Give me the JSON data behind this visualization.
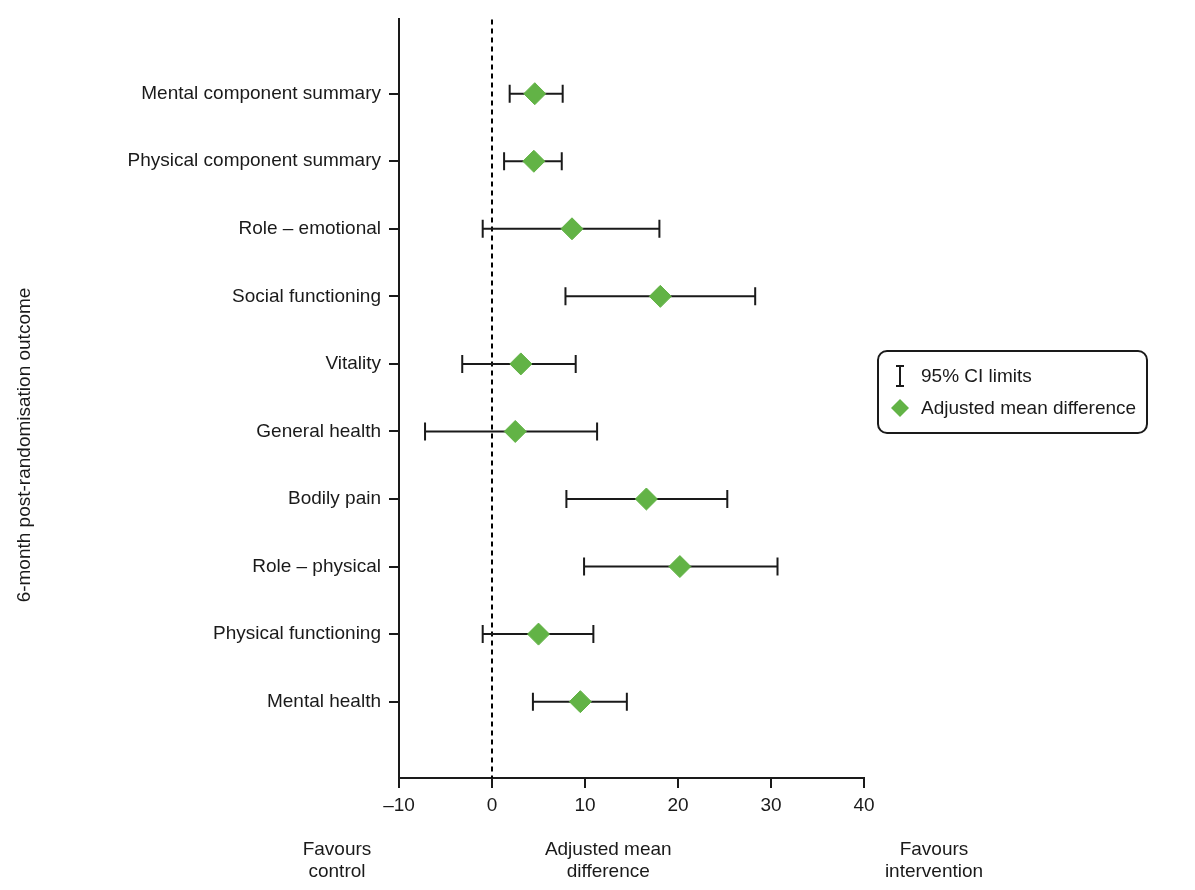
{
  "chart_data": {
    "type": "scatter",
    "orientation": "horizontal",
    "ylabel": "6-month post-randomisation outcome",
    "xlabel": "Adjusted mean difference",
    "categories": [
      "Mental component summary",
      "Physical component summary",
      "Role – emotional",
      "Social functioning",
      "Vitality",
      "General health",
      "Bodily pain",
      "Role – physical",
      "Physical functioning",
      "Mental health"
    ],
    "series": [
      {
        "name": "Adjusted mean difference",
        "color": "#62b346",
        "values": [
          4.6,
          4.5,
          8.6,
          18.1,
          3.1,
          2.5,
          16.6,
          20.2,
          5.0,
          9.5
        ],
        "errors": [
          [
            1.9,
            7.6
          ],
          [
            1.3,
            7.5
          ],
          [
            -1.0,
            18.0
          ],
          [
            7.9,
            28.3
          ],
          [
            -3.2,
            9.0
          ],
          [
            -7.2,
            11.3
          ],
          [
            8.0,
            25.3
          ],
          [
            9.9,
            30.7
          ],
          [
            -1.0,
            10.9
          ],
          [
            4.4,
            14.5
          ]
        ]
      }
    ],
    "xlim": [
      -10,
      40
    ],
    "xticks": [
      {
        "value": -10,
        "label": "–10"
      },
      0,
      10,
      20,
      30,
      40
    ],
    "ref_lines": [
      {
        "axis": "x",
        "value": 0,
        "line_style": "dashed",
        "color": "#000000"
      }
    ],
    "annotations": [
      "Favours control",
      "Favours intervention",
      "95% CI limits"
    ],
    "marker": "diamond",
    "legend": "right",
    "grid": false
  }
}
